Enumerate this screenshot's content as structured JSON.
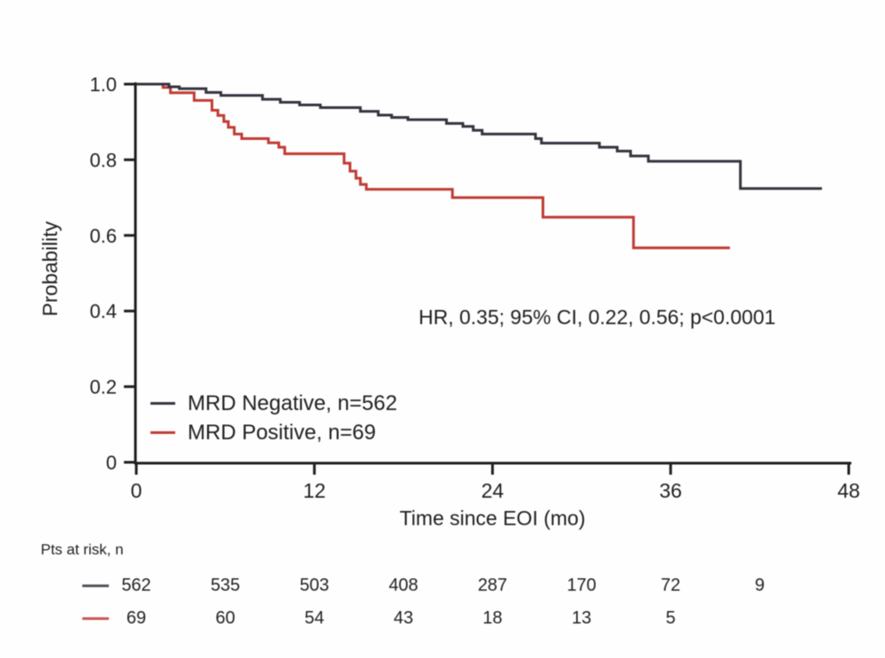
{
  "chart_data": {
    "type": "line",
    "subtype": "kaplan-meier-step",
    "title": "",
    "xlabel": "Time since EOI (mo)",
    "ylabel": "Probability",
    "annotation": "HR, 0.35; 95% CI, 0.22, 0.56; p<0.0001",
    "xlim": [
      0,
      48
    ],
    "ylim": [
      0,
      1.0
    ],
    "xticks": [
      0,
      12,
      24,
      36,
      48
    ],
    "ytick_labels": [
      "1.0",
      "0.8",
      "0.6",
      "0.4",
      "0.2",
      "0"
    ],
    "grid": false,
    "legend_position": "inside-lower-left",
    "axis_color": "#1f1f1f",
    "series": [
      {
        "name": "MRD Negative, n=562",
        "color": "#33333f",
        "end_month": 46.2,
        "steps": [
          [
            0,
            1.0
          ],
          [
            2.2,
            0.993
          ],
          [
            2.9,
            0.988
          ],
          [
            4.7,
            0.978
          ],
          [
            5.7,
            0.97
          ],
          [
            8.5,
            0.96
          ],
          [
            9.7,
            0.952
          ],
          [
            11,
            0.945
          ],
          [
            12.4,
            0.938
          ],
          [
            15.1,
            0.928
          ],
          [
            16.3,
            0.918
          ],
          [
            17.2,
            0.912
          ],
          [
            18.3,
            0.906
          ],
          [
            20.9,
            0.896
          ],
          [
            22,
            0.888
          ],
          [
            22.7,
            0.878
          ],
          [
            23.3,
            0.868
          ],
          [
            26.9,
            0.856
          ],
          [
            27.3,
            0.844
          ],
          [
            31.2,
            0.833
          ],
          [
            32.4,
            0.823
          ],
          [
            33.3,
            0.81
          ],
          [
            34.5,
            0.796
          ],
          [
            40.7,
            0.724
          ]
        ]
      },
      {
        "name": "MRD Positive, n=69",
        "color": "#c03a32",
        "end_month": 40.0,
        "steps": [
          [
            0,
            1.0
          ],
          [
            1.8,
            0.991
          ],
          [
            2.3,
            0.977
          ],
          [
            3.9,
            0.957
          ],
          [
            5.1,
            0.931
          ],
          [
            5.5,
            0.917
          ],
          [
            5.9,
            0.901
          ],
          [
            6.2,
            0.886
          ],
          [
            6.6,
            0.868
          ],
          [
            7.1,
            0.856
          ],
          [
            8.9,
            0.845
          ],
          [
            9.6,
            0.833
          ],
          [
            10,
            0.816
          ],
          [
            14,
            0.791
          ],
          [
            14.4,
            0.77
          ],
          [
            14.8,
            0.751
          ],
          [
            15.1,
            0.735
          ],
          [
            15.5,
            0.722
          ],
          [
            21.3,
            0.7
          ],
          [
            27.4,
            0.648
          ],
          [
            33.5,
            0.567
          ]
        ]
      }
    ],
    "at_risk": {
      "label": "Pts at risk, n",
      "months": [
        0,
        6,
        12,
        18,
        24,
        30,
        36,
        42
      ],
      "rows": [
        {
          "series": "MRD Negative",
          "color": "#33333f",
          "values": [
            562,
            535,
            503,
            408,
            287,
            170,
            72,
            9
          ]
        },
        {
          "series": "MRD Positive",
          "color": "#c03a32",
          "values": [
            69,
            60,
            54,
            43,
            18,
            13,
            5
          ]
        }
      ]
    }
  }
}
